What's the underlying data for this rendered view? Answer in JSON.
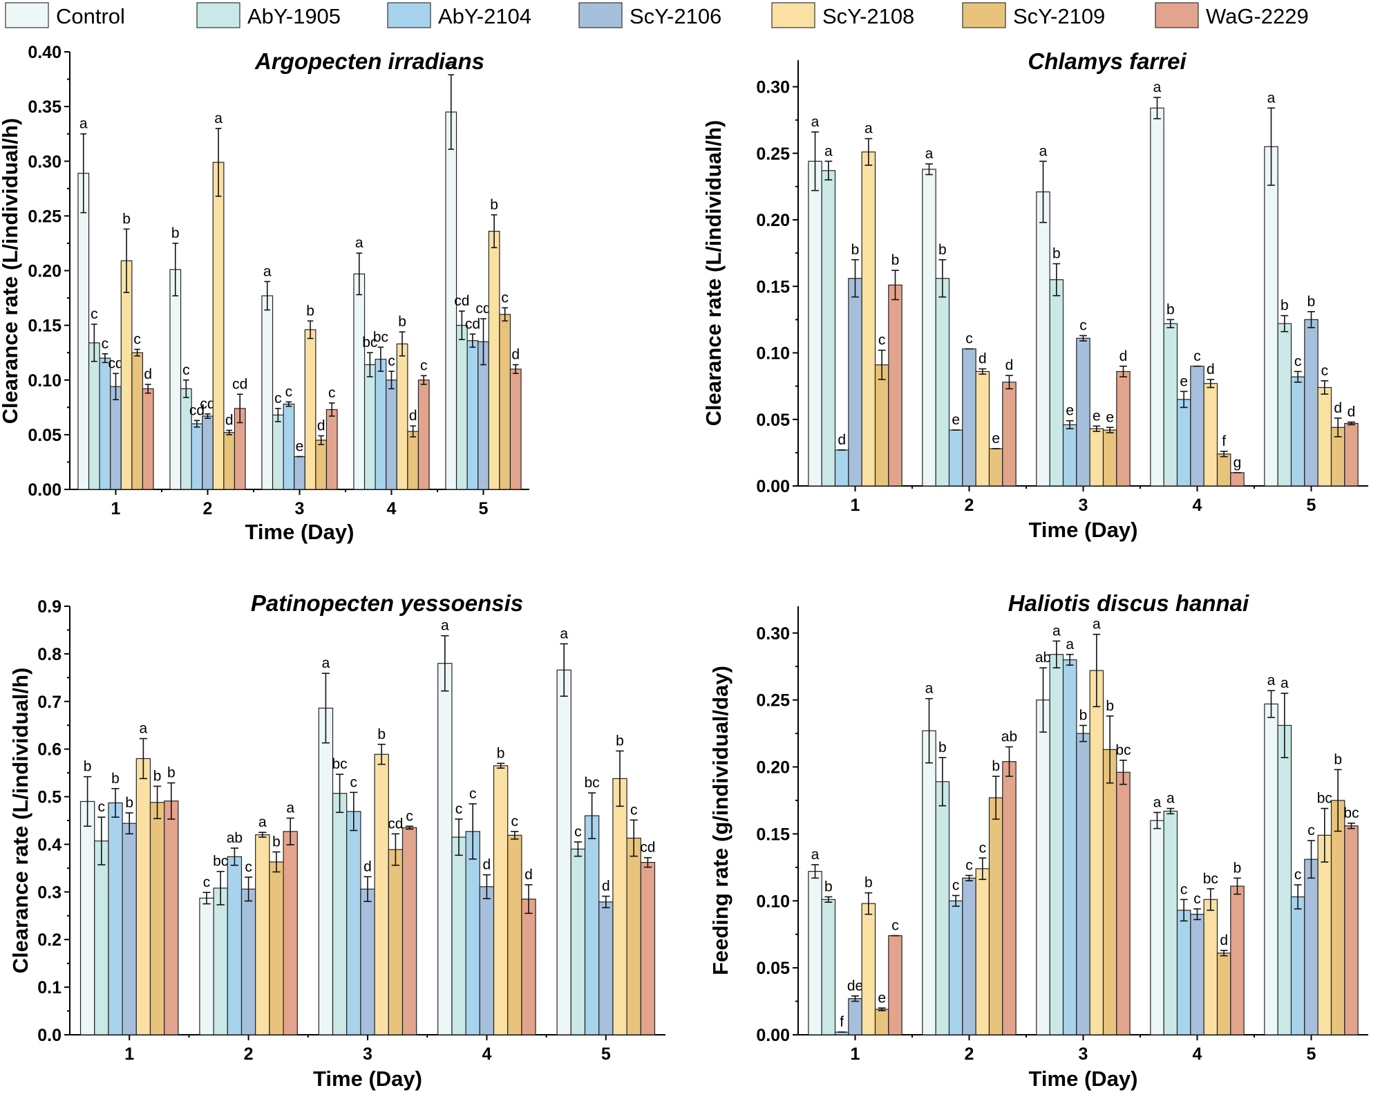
{
  "legend": {
    "series": [
      {
        "name": "Control",
        "color": "#eef7f7"
      },
      {
        "name": "AbY-1905",
        "color": "#c9e8e6"
      },
      {
        "name": "AbY-2104",
        "color": "#a8d3ec"
      },
      {
        "name": "ScY-2106",
        "color": "#a6bfdc"
      },
      {
        "name": "ScY-2108",
        "color": "#fbe0a4"
      },
      {
        "name": "ScY-2109",
        "color": "#e8c37c"
      },
      {
        "name": "WaG-2229",
        "color": "#e2a48c"
      }
    ]
  },
  "chart_data": [
    {
      "type": "bar",
      "title": "Argopecten irradians",
      "xlabel": "Time (Day)",
      "ylabel": "Clearance rate (L/individual/h)",
      "categories": [
        "1",
        "2",
        "3",
        "4",
        "5"
      ],
      "ylim": [
        0,
        0.4
      ],
      "yticks": [
        0,
        0.05,
        0.1,
        0.15,
        0.2,
        0.25,
        0.3,
        0.35,
        0.4
      ],
      "ytick_labels": [
        "0.00",
        "0.05",
        "0.10",
        "0.15",
        "0.20",
        "0.25",
        "0.30",
        "0.35",
        "0.40"
      ],
      "series": [
        {
          "name": "Control",
          "values": [
            0.289,
            0.201,
            0.177,
            0.197,
            0.345
          ],
          "errors": [
            0.036,
            0.024,
            0.013,
            0.019,
            0.034
          ],
          "labels": [
            "a",
            "b",
            "a",
            "a",
            "a"
          ]
        },
        {
          "name": "AbY-1905",
          "values": [
            0.134,
            0.092,
            0.068,
            0.114,
            0.15
          ],
          "errors": [
            0.017,
            0.008,
            0.006,
            0.011,
            0.013
          ],
          "labels": [
            "c",
            "c",
            "c",
            "bc",
            "cd"
          ]
        },
        {
          "name": "AbY-2104",
          "values": [
            0.12,
            0.06,
            0.078,
            0.119,
            0.136
          ],
          "errors": [
            0.004,
            0.003,
            0.002,
            0.011,
            0.006
          ],
          "labels": [
            "c",
            "cd",
            "c",
            "bc",
            "cd"
          ]
        },
        {
          "name": "ScY-2106",
          "values": [
            0.094,
            0.067,
            0.03,
            0.1,
            0.135
          ],
          "errors": [
            0.012,
            0.002,
            0.0,
            0.008,
            0.021
          ],
          "labels": [
            "cd",
            "cd",
            "e",
            "c",
            "cd"
          ]
        },
        {
          "name": "ScY-2108",
          "values": [
            0.209,
            0.299,
            0.146,
            0.133,
            0.236
          ],
          "errors": [
            0.029,
            0.031,
            0.008,
            0.011,
            0.015
          ],
          "labels": [
            "b",
            "a",
            "b",
            "b",
            "b"
          ]
        },
        {
          "name": "ScY-2109",
          "values": [
            0.125,
            0.052,
            0.045,
            0.053,
            0.16
          ],
          "errors": [
            0.003,
            0.002,
            0.004,
            0.005,
            0.006
          ],
          "labels": [
            "c",
            "d",
            "d",
            "d",
            "c"
          ]
        },
        {
          "name": "WaG-2229",
          "values": [
            0.092,
            0.074,
            0.073,
            0.1,
            0.11
          ],
          "errors": [
            0.004,
            0.013,
            0.006,
            0.004,
            0.004
          ],
          "labels": [
            "d",
            "cd",
            "c",
            "c",
            "d"
          ]
        }
      ]
    },
    {
      "type": "bar",
      "title": "Chlamys farrei",
      "xlabel": "Time (Day)",
      "ylabel": "Clearance rate (L/individual/h)",
      "categories": [
        "1",
        "2",
        "3",
        "4",
        "5"
      ],
      "ylim": [
        0,
        0.32
      ],
      "yticks": [
        0,
        0.05,
        0.1,
        0.15,
        0.2,
        0.25,
        0.3
      ],
      "ytick_labels": [
        "0.00",
        "0.05",
        "0.10",
        "0.15",
        "0.20",
        "0.25",
        "0.30"
      ],
      "series": [
        {
          "name": "Control",
          "values": [
            0.244,
            0.238,
            0.221,
            0.284,
            0.255
          ],
          "errors": [
            0.022,
            0.004,
            0.023,
            0.008,
            0.029
          ],
          "labels": [
            "a",
            "a",
            "a",
            "a",
            "a"
          ]
        },
        {
          "name": "AbY-1905",
          "values": [
            0.237,
            0.156,
            0.155,
            0.122,
            0.122
          ],
          "errors": [
            0.007,
            0.014,
            0.012,
            0.003,
            0.006
          ],
          "labels": [
            "a",
            "b",
            "b",
            "b",
            "b"
          ]
        },
        {
          "name": "AbY-2104",
          "values": [
            0.027,
            0.042,
            0.046,
            0.065,
            0.082
          ],
          "errors": [
            0.0,
            0.0,
            0.003,
            0.006,
            0.004
          ],
          "labels": [
            "d",
            "e",
            "e",
            "e",
            "c"
          ]
        },
        {
          "name": "ScY-2106",
          "values": [
            0.156,
            0.103,
            0.111,
            0.09,
            0.125
          ],
          "errors": [
            0.014,
            0.0,
            0.002,
            0.0,
            0.006
          ],
          "labels": [
            "b",
            "c",
            "c",
            "c",
            "b"
          ]
        },
        {
          "name": "ScY-2108",
          "values": [
            0.251,
            0.086,
            0.043,
            0.077,
            0.074
          ],
          "errors": [
            0.01,
            0.002,
            0.002,
            0.003,
            0.005
          ],
          "labels": [
            "a",
            "d",
            "e",
            "d",
            "c"
          ]
        },
        {
          "name": "ScY-2109",
          "values": [
            0.091,
            0.028,
            0.042,
            0.024,
            0.044
          ],
          "errors": [
            0.011,
            0.0,
            0.002,
            0.002,
            0.007
          ],
          "labels": [
            "c",
            "e",
            "e",
            "f",
            "d"
          ]
        },
        {
          "name": "WaG-2229",
          "values": [
            0.151,
            0.078,
            0.086,
            0.01,
            0.047
          ],
          "errors": [
            0.011,
            0.005,
            0.004,
            0.0,
            0.001
          ],
          "labels": [
            "b",
            "d",
            "d",
            "g",
            "d"
          ]
        }
      ]
    },
    {
      "type": "bar",
      "title": "Patinopecten yessoensis",
      "xlabel": "Time (Day)",
      "ylabel": "Clearance rate (L/individual/h)",
      "categories": [
        "1",
        "2",
        "3",
        "4",
        "5"
      ],
      "ylim": [
        0,
        0.9
      ],
      "yticks": [
        0,
        0.1,
        0.2,
        0.3,
        0.4,
        0.5,
        0.6,
        0.7,
        0.8,
        0.9
      ],
      "ytick_labels": [
        "0.0",
        "0.1",
        "0.2",
        "0.3",
        "0.4",
        "0.5",
        "0.6",
        "0.7",
        "0.8",
        "0.9"
      ],
      "series": [
        {
          "name": "Control",
          "values": [
            0.49,
            0.287,
            0.686,
            0.78,
            0.766
          ],
          "errors": [
            0.052,
            0.012,
            0.073,
            0.058,
            0.055
          ],
          "labels": [
            "b",
            "c",
            "a",
            "a",
            "a"
          ]
        },
        {
          "name": "AbY-1905",
          "values": [
            0.407,
            0.308,
            0.507,
            0.415,
            0.39
          ],
          "errors": [
            0.05,
            0.035,
            0.04,
            0.038,
            0.015
          ],
          "labels": [
            "c",
            "bc",
            "bc",
            "c",
            "c"
          ]
        },
        {
          "name": "AbY-2104",
          "values": [
            0.487,
            0.374,
            0.469,
            0.427,
            0.46
          ],
          "errors": [
            0.03,
            0.018,
            0.04,
            0.058,
            0.048
          ],
          "labels": [
            "b",
            "ab",
            "c",
            "c",
            "bc"
          ]
        },
        {
          "name": "ScY-2106",
          "values": [
            0.444,
            0.306,
            0.306,
            0.311,
            0.279
          ],
          "errors": [
            0.022,
            0.025,
            0.026,
            0.025,
            0.012
          ],
          "labels": [
            "b",
            "c",
            "d",
            "d",
            "d"
          ]
        },
        {
          "name": "ScY-2108",
          "values": [
            0.58,
            0.42,
            0.589,
            0.565,
            0.538
          ],
          "errors": [
            0.042,
            0.005,
            0.021,
            0.005,
            0.058
          ],
          "labels": [
            "a",
            "a",
            "b",
            "b",
            "b"
          ]
        },
        {
          "name": "ScY-2109",
          "values": [
            0.488,
            0.363,
            0.389,
            0.419,
            0.413
          ],
          "errors": [
            0.034,
            0.021,
            0.033,
            0.008,
            0.038
          ],
          "labels": [
            "b",
            "b",
            "cd",
            "c",
            "c"
          ]
        },
        {
          "name": "WaG-2229",
          "values": [
            0.491,
            0.427,
            0.435,
            0.285,
            0.362
          ],
          "errors": [
            0.038,
            0.028,
            0.003,
            0.03,
            0.01
          ],
          "labels": [
            "b",
            "a",
            "c",
            "d",
            "cd"
          ]
        }
      ]
    },
    {
      "type": "bar",
      "title": "Haliotis discus hannai",
      "xlabel": "Time (Day)",
      "ylabel": "Feeding rate (g/individual/day)",
      "categories": [
        "1",
        "2",
        "3",
        "4",
        "5"
      ],
      "ylim": [
        0,
        0.32
      ],
      "yticks": [
        0,
        0.05,
        0.1,
        0.15,
        0.2,
        0.25,
        0.3
      ],
      "ytick_labels": [
        "0.00",
        "0.05",
        "0.10",
        "0.15",
        "0.20",
        "0.25",
        "0.30"
      ],
      "series": [
        {
          "name": "Control",
          "values": [
            0.122,
            0.227,
            0.25,
            0.16,
            0.247
          ],
          "errors": [
            0.005,
            0.024,
            0.024,
            0.006,
            0.01
          ],
          "labels": [
            "a",
            "a",
            "ab",
            "a",
            "a"
          ]
        },
        {
          "name": "AbY-1905",
          "values": [
            0.101,
            0.189,
            0.284,
            0.167,
            0.231
          ],
          "errors": [
            0.002,
            0.018,
            0.01,
            0.002,
            0.024
          ],
          "labels": [
            "b",
            "b",
            "a",
            "a",
            "a"
          ]
        },
        {
          "name": "AbY-2104",
          "values": [
            0.002,
            0.1,
            0.28,
            0.093,
            0.103
          ],
          "errors": [
            0.0,
            0.004,
            0.004,
            0.008,
            0.009
          ],
          "labels": [
            "f",
            "c",
            "a",
            "c",
            "c"
          ]
        },
        {
          "name": "ScY-2106",
          "values": [
            0.027,
            0.117,
            0.225,
            0.09,
            0.131
          ],
          "errors": [
            0.002,
            0.002,
            0.006,
            0.004,
            0.014
          ],
          "labels": [
            "de",
            "c",
            "b",
            "c",
            "c"
          ]
        },
        {
          "name": "ScY-2108",
          "values": [
            0.098,
            0.124,
            0.272,
            0.101,
            0.149
          ],
          "errors": [
            0.008,
            0.008,
            0.027,
            0.008,
            0.02
          ],
          "labels": [
            "b",
            "c",
            "a",
            "bc",
            "bc"
          ]
        },
        {
          "name": "ScY-2109",
          "values": [
            0.019,
            0.177,
            0.213,
            0.061,
            0.175
          ],
          "errors": [
            0.001,
            0.016,
            0.025,
            0.002,
            0.023
          ],
          "labels": [
            "e",
            "b",
            "b",
            "d",
            "b"
          ]
        },
        {
          "name": "WaG-2229",
          "values": [
            0.074,
            0.204,
            0.196,
            0.111,
            0.156
          ],
          "errors": [
            0.0,
            0.011,
            0.009,
            0.006,
            0.002
          ],
          "labels": [
            "c",
            "ab",
            "bc",
            "b",
            "bc"
          ]
        }
      ]
    }
  ]
}
